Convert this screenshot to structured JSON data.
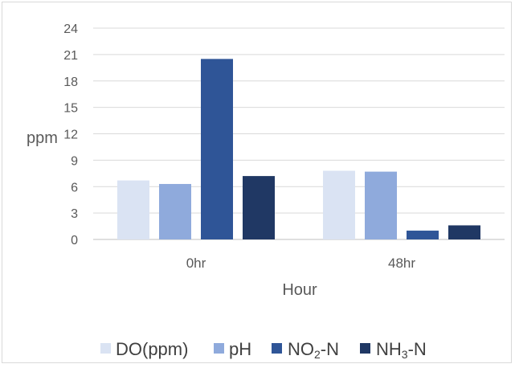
{
  "chart_data": {
    "type": "bar",
    "categories": [
      "0hr",
      "48hr"
    ],
    "series": [
      {
        "name": "DO(ppm)",
        "values": [
          6.7,
          7.8
        ],
        "color": "#dae3f3"
      },
      {
        "name": "pH",
        "values": [
          6.3,
          7.7
        ],
        "color": "#8faadc"
      },
      {
        "name": "NO2-N",
        "values": [
          20.5,
          1.0
        ],
        "color": "#2f5597"
      },
      {
        "name": "NH3-N",
        "values": [
          7.2,
          1.6
        ],
        "color": "#203864"
      }
    ],
    "title": "",
    "xlabel": "Hour",
    "ylabel": "ppm",
    "ylim": [
      0,
      24
    ],
    "yticks": [
      0,
      3,
      6,
      9,
      12,
      15,
      18,
      21,
      24
    ],
    "grid": true,
    "legend_position": "bottom"
  },
  "legend": {
    "do_label": "DO(ppm)",
    "ph_label": "pH",
    "no2_prefix": "NO",
    "no2_sub": "2",
    "no2_suffix": "-N",
    "nh3_prefix": "NH",
    "nh3_sub": "3",
    "nh3_suffix": "-N"
  }
}
